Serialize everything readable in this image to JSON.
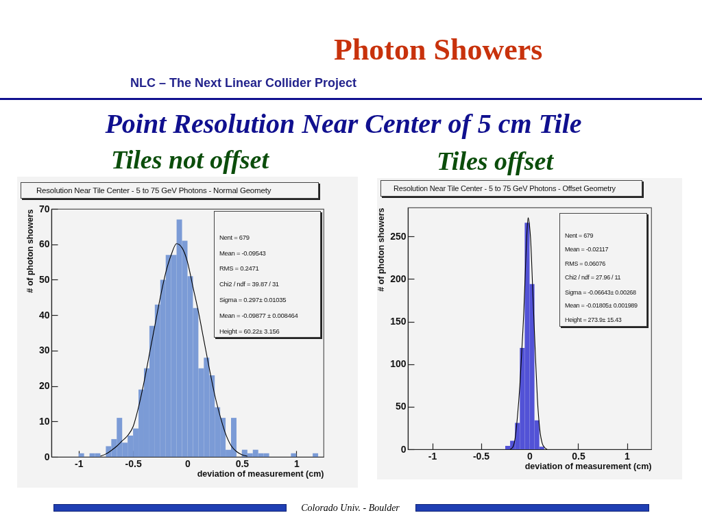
{
  "chart_data": [
    {
      "type": "other",
      "title": "Photon Showers",
      "subtitle": "NLC – The Next Linear Collider Project",
      "annotations": [
        "Point Resolution Near Center of 5 cm Tile",
        "Colorado Univ. - Boulder"
      ]
    },
    {
      "type": "histogram",
      "title": "Tiles not offset",
      "subtitle": "Resolution Near Tile Center - 5 to 75 GeV Photons - Normal Geomety",
      "xlabel": "deviation of measurement (cm)",
      "ylabel": "# of photon showers",
      "bins": [
        -1.25,
        -1.2,
        -1.15,
        -1.1,
        -1.05,
        -1,
        -0.95,
        -0.9,
        -0.85,
        -0.8,
        -0.75,
        -0.7,
        -0.65,
        -0.6,
        -0.55,
        -0.5,
        -0.45,
        -0.4,
        -0.35,
        -0.3,
        -0.25,
        -0.2,
        -0.15,
        -0.1,
        -0.05,
        0,
        0.05,
        0.1,
        0.15,
        0.2,
        0.25,
        0.3,
        0.35,
        0.4,
        0.45,
        0.5,
        0.55,
        0.6,
        0.65,
        0.7,
        0.75,
        0.8,
        0.85,
        0.9,
        0.95,
        1,
        1.05,
        1.1,
        1.15,
        1.2,
        1.25
      ],
      "series": [
        {
          "color": "#7b9bd6",
          "values": [
            0,
            0,
            0,
            0,
            0,
            1,
            0,
            1,
            1,
            0,
            3,
            5,
            11,
            4,
            6,
            8,
            19,
            25,
            37,
            43,
            50,
            57,
            57,
            67,
            61,
            51,
            42,
            25,
            28,
            23,
            14,
            11,
            2,
            11,
            0,
            2,
            1,
            2,
            1,
            1,
            0,
            0,
            0,
            0,
            1,
            0,
            0,
            0,
            1,
            0
          ]
        },
        {
          "type": "line",
          "color": "#000000",
          "x": [
            -0.8,
            -0.75,
            -0.7,
            -0.65,
            -0.6,
            -0.55,
            -0.5,
            -0.45,
            -0.4,
            -0.35,
            -0.3,
            -0.25,
            -0.2,
            -0.15,
            -0.1,
            -0.05,
            0,
            0.05,
            0.1,
            0.15,
            0.2,
            0.25,
            0.3,
            0.35,
            0.4,
            0.45,
            0.5,
            0.55
          ],
          "values": [
            0.2,
            0.8,
            1.8,
            3,
            4.5,
            6,
            8.5,
            14,
            21,
            29,
            37,
            45,
            52,
            57,
            60.2,
            59,
            55,
            48,
            41,
            33,
            25,
            17.5,
            11.5,
            6.5,
            3.2,
            1.5,
            0.6,
            0.2
          ]
        }
      ],
      "xlim": [
        -1.25,
        1.25
      ],
      "xticks": [
        -1,
        -0.5,
        0,
        0.5,
        1
      ],
      "ylim": [
        0,
        70
      ],
      "yticks": [
        0,
        10,
        20,
        30,
        40,
        50,
        60,
        70
      ],
      "annotations": [
        "Nent = 679",
        "Mean = -0.09543",
        "RMS = 0.2471",
        "Chi2 / ndf = 39.87 / 31",
        "Sigma = 0.297± 0.01035",
        "Mean = -0.09877 ± 0.008464",
        "Height = 60.22± 3.156"
      ]
    },
    {
      "type": "histogram",
      "title": "Tiles offset",
      "subtitle": "Resolution Near Tile Center - 5 to 75 GeV Photons - Offset Geometry",
      "xlabel": "deviation of measurement (cm)",
      "ylabel": "# of photon showers",
      "bins": [
        -1.25,
        -1.2,
        -1.15,
        -1.1,
        -1.05,
        -1,
        -0.95,
        -0.9,
        -0.85,
        -0.8,
        -0.75,
        -0.7,
        -0.65,
        -0.6,
        -0.55,
        -0.5,
        -0.45,
        -0.4,
        -0.35,
        -0.3,
        -0.25,
        -0.2,
        -0.15,
        -0.1,
        -0.05,
        0,
        0.05,
        0.1,
        0.15,
        0.2,
        0.25,
        0.3,
        0.35,
        0.4,
        0.45,
        0.5,
        0.55,
        0.6,
        0.65,
        0.7,
        0.75,
        0.8,
        0.85,
        0.9,
        0.95,
        1,
        1.05,
        1.1,
        1.15,
        1.2,
        1.25
      ],
      "series": [
        {
          "color": "#5252d6",
          "values": [
            0,
            0,
            0,
            0,
            0,
            0,
            0,
            0,
            0,
            0,
            0,
            0,
            0,
            0,
            0,
            0,
            0,
            0,
            0,
            0,
            4,
            10,
            31,
            119,
            266,
            194,
            34,
            3,
            0,
            0,
            0,
            0,
            0,
            0,
            0,
            0,
            0,
            0,
            0,
            0,
            0,
            0,
            0,
            0,
            0,
            0,
            0,
            0,
            0,
            0
          ]
        },
        {
          "type": "line",
          "color": "#000000",
          "x": [
            -0.2,
            -0.175,
            -0.15,
            -0.125,
            -0.1,
            -0.08,
            -0.06,
            -0.045,
            -0.035,
            -0.025,
            -0.015,
            0,
            0.01,
            0.035,
            0.06,
            0.08,
            0.105,
            0.13,
            0.155,
            0.18
          ],
          "values": [
            0,
            2,
            12,
            38,
            75,
            116,
            160,
            205,
            235,
            259,
            272,
            262,
            248,
            179,
            110,
            60,
            23,
            7,
            2,
            0
          ]
        }
      ],
      "xlim": [
        -1.25,
        1.25
      ],
      "xticks": [
        -1,
        -0.5,
        0,
        0.5,
        1
      ],
      "ylim": [
        0,
        284
      ],
      "yticks": [
        0,
        50,
        100,
        150,
        200,
        250
      ],
      "annotations": [
        "Nent = 679",
        "Mean = -0.02117",
        "RMS = 0.06076",
        "Chi2 / ndf = 27.96 / 11",
        "Sigma = -0.06643± 0.00268",
        "Mean = -0.01805± 0.001989",
        "Height = 273.9± 15.43"
      ]
    }
  ]
}
